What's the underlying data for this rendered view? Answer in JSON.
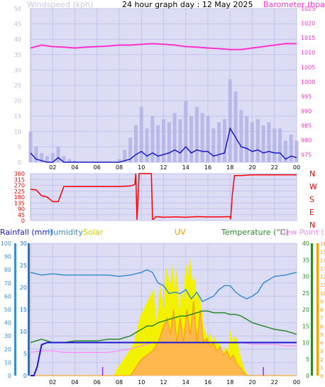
{
  "chart_data": [
    {
      "type": "line",
      "title": "24 hour graph day : 12 May 2025",
      "left_axis": {
        "label": "Windspeed (kph)",
        "range": [
          0,
          50
        ],
        "ticks": [
          "0",
          "5",
          "10",
          "15",
          "20",
          "25",
          "30",
          "35",
          "40",
          "45",
          "50"
        ],
        "color": "#c8c8e6"
      },
      "right_axis": {
        "label": "Barometer (hpa)",
        "range": [
          972.5,
          1025
        ],
        "ticks": [
          "975",
          "980",
          "985",
          "990",
          "995",
          "1000",
          "1005",
          "1010",
          "1015",
          "1020",
          "1025"
        ],
        "color": "#ff33cc"
      },
      "x_ticks": [
        "02",
        "04",
        "06",
        "08",
        "10",
        "12",
        "14",
        "16",
        "18",
        "20",
        "22",
        "00"
      ],
      "series": [
        {
          "name": "Barometer (hpa)",
          "axis": "right",
          "color": "#ff33cc",
          "x": [
            0,
            1,
            2,
            3,
            4,
            5,
            6,
            7,
            8,
            9,
            10,
            11,
            12,
            13,
            14,
            15,
            16,
            17,
            18,
            19,
            20,
            21,
            22,
            23,
            24
          ],
          "values": [
            1011.5,
            1012.5,
            1012.0,
            1011.8,
            1011.5,
            1011.8,
            1012.0,
            1012.2,
            1012.5,
            1012.5,
            1012.8,
            1013.0,
            1012.8,
            1012.5,
            1012.0,
            1011.8,
            1011.5,
            1011.3,
            1011.0,
            1011.0,
            1011.5,
            1012.0,
            1012.5,
            1013.0,
            1013.0
          ]
        },
        {
          "name": "Windspeed (kph)",
          "axis": "left",
          "color": "#1a1acc",
          "x": [
            0,
            0.5,
            1,
            1.5,
            2,
            2.5,
            3,
            3.5,
            4,
            5,
            6,
            7,
            8,
            8.5,
            9,
            9.5,
            10,
            10.5,
            11,
            11.5,
            12,
            12.5,
            13,
            13.5,
            14,
            14.5,
            15,
            15.5,
            16,
            16.5,
            17,
            17.5,
            18,
            18.5,
            19,
            19.5,
            20,
            20.5,
            21,
            21.5,
            22,
            22.5,
            23,
            23.5,
            24
          ],
          "values": [
            3,
            1,
            0.5,
            0,
            0,
            1.5,
            0,
            0,
            0,
            0,
            0,
            0,
            0,
            0.5,
            1,
            2.5,
            3.5,
            2,
            3,
            2,
            2.5,
            3,
            4,
            3,
            5,
            3,
            4,
            3.5,
            3.5,
            2,
            2.5,
            3,
            11,
            8,
            5,
            4.5,
            3.5,
            4,
            3,
            3.5,
            3,
            3,
            1,
            2,
            1.5
          ]
        },
        {
          "name": "Windspeed gust (kph)",
          "axis": "left",
          "color": "#b4b4e8",
          "x": [
            0,
            0.5,
            1,
            1.5,
            2,
            2.5,
            3,
            3.5,
            4,
            5,
            6,
            7,
            8,
            8.5,
            9,
            9.5,
            10,
            10.5,
            11,
            11.5,
            12,
            12.5,
            13,
            13.5,
            14,
            14.5,
            15,
            15.5,
            16,
            16.5,
            17,
            17.5,
            18,
            18.5,
            19,
            19.5,
            20,
            20.5,
            21,
            21.5,
            22,
            22.5,
            23,
            23.5,
            24
          ],
          "values": [
            10,
            5,
            3,
            2,
            3,
            5,
            2,
            1,
            0.5,
            0,
            0,
            0,
            1,
            4,
            8,
            12,
            18,
            11,
            15,
            12,
            14,
            13,
            16,
            14,
            20,
            15,
            18,
            16,
            15,
            11,
            13,
            14,
            27,
            23,
            17,
            15,
            13,
            14,
            12,
            13,
            11,
            11,
            7,
            9,
            7
          ]
        }
      ]
    },
    {
      "type": "line",
      "title": "Wind direction",
      "left_axis": {
        "range": [
          0,
          360
        ],
        "ticks": [
          "0",
          "45",
          "90",
          "135",
          "180",
          "225",
          "270",
          "315",
          "360"
        ],
        "color": "#ff0000"
      },
      "right_labels": [
        "N",
        "W",
        "S",
        "E",
        "N"
      ],
      "x_ticks": [
        "02",
        "04",
        "06",
        "08",
        "10",
        "12",
        "14",
        "16",
        "18",
        "20",
        "22",
        "00"
      ],
      "series": [
        {
          "name": "Wind direction",
          "color": "#ff0000",
          "x": [
            0,
            0.5,
            1,
            1.5,
            2,
            2.5,
            3,
            4,
            5,
            6,
            7,
            8,
            9,
            9.4,
            9.5,
            9.6,
            9.8,
            10.5,
            10.9,
            11,
            11.1,
            11.3,
            12,
            13,
            14,
            15,
            16,
            17,
            18,
            18.05,
            18.2,
            18.4,
            19,
            20,
            21,
            22,
            23,
            24
          ],
          "values": [
            240,
            235,
            190,
            180,
            145,
            145,
            260,
            260,
            260,
            260,
            260,
            260,
            265,
            275,
            360,
            5,
            360,
            360,
            362,
            10,
            10,
            30,
            25,
            28,
            25,
            30,
            28,
            28,
            30,
            10,
            200,
            345,
            345,
            350,
            350,
            350,
            350,
            350
          ]
        }
      ]
    },
    {
      "type": "line",
      "title": "",
      "legend": [
        "Rainfall (mm)",
        "Humidity",
        "Solar",
        "UV",
        "Temperature (°C)",
        "Dew Point (°C)"
      ],
      "left_axis": {
        "label": "Rainfall (mm)",
        "range": [
          0,
          30
        ],
        "ticks": [
          "0",
          "5",
          "10",
          "15",
          "20",
          "25",
          "30"
        ],
        "color": "#1a77cc"
      },
      "humidity_axis": {
        "label": "Humidity",
        "range": [
          0,
          100
        ],
        "ticks": [
          "0",
          "10",
          "20",
          "30",
          "40",
          "50",
          "60",
          "70",
          "80",
          "90",
          "100"
        ],
        "color": "#3a8fd0"
      },
      "temperature_axis": {
        "label": "Temperature (°C)",
        "range": [
          0,
          40
        ],
        "ticks": [
          "0",
          "5",
          "10",
          "15",
          "20",
          "25",
          "30",
          "35",
          "40"
        ],
        "color": "#ff9900"
      },
      "uv_axis": {
        "label": "UV",
        "range": [
          0,
          16
        ],
        "ticks": [
          "0",
          "1",
          "2",
          "3",
          "4",
          "5",
          "6",
          "7",
          "8",
          "9",
          "10",
          "11",
          "12",
          "13",
          "14",
          "15",
          "16"
        ],
        "color": "#ff9900"
      },
      "x_ticks": [
        "02",
        "04",
        "06",
        "08",
        "10",
        "12",
        "14",
        "16",
        "18",
        "20",
        "22",
        "00"
      ],
      "series": [
        {
          "name": "Solar",
          "axis": "temperature",
          "color": "#f2f200",
          "x": [
            0,
            7.5,
            7.8,
            8.2,
            8.6,
            9,
            9.3,
            9.6,
            9.9,
            10.2,
            10.5,
            10.8,
            11.1,
            11.4,
            11.7,
            12,
            12.2,
            12.4,
            12.6,
            12.8,
            13,
            13.2,
            13.4,
            13.6,
            13.8,
            14,
            14.2,
            14.4,
            14.6,
            14.8,
            15,
            15.2,
            15.4,
            15.6,
            15.8,
            16,
            16.2,
            16.4,
            16.6,
            16.8,
            17,
            17.2,
            17.4,
            17.6,
            17.8,
            18,
            18.2,
            18.4,
            18.6,
            18.8,
            19,
            19.3,
            19.6,
            24
          ],
          "values": [
            0,
            0,
            2,
            4,
            6,
            8,
            10,
            14,
            18,
            20,
            22,
            24,
            26,
            16,
            28,
            20,
            33,
            30,
            27,
            34,
            26,
            33,
            20,
            26,
            23,
            34,
            30,
            36,
            28,
            30,
            24,
            25,
            21,
            15,
            13,
            11,
            13,
            10,
            12,
            9,
            11,
            8,
            7,
            9,
            6,
            14,
            10,
            12,
            11,
            8,
            5,
            2,
            0,
            0
          ]
        },
        {
          "name": "UV",
          "axis": "uv",
          "color": "#ff9900",
          "x": [
            0,
            9,
            9.5,
            10,
            10.5,
            11,
            11.5,
            12,
            12.3,
            12.6,
            12.9,
            13.2,
            13.5,
            13.8,
            14.1,
            14.4,
            14.7,
            15,
            15.3,
            15.6,
            15.9,
            16.2,
            16.5,
            16.8,
            17.1,
            17.4,
            17.7,
            18,
            18.3,
            18.6,
            18.9,
            19.2,
            19.5,
            24
          ],
          "values": [
            0,
            0,
            1,
            2,
            2.5,
            3,
            4,
            6,
            7,
            5,
            8,
            4,
            7,
            4,
            8,
            5,
            9,
            4,
            8,
            4,
            4.5,
            3.5,
            4,
            3,
            3.5,
            2.5,
            3,
            2,
            2.5,
            1.5,
            1,
            0.5,
            0,
            0
          ]
        },
        {
          "name": "Humidity",
          "axis": "humidity",
          "color": "#3a8fd0",
          "x": [
            0,
            1,
            2,
            3,
            4,
            5,
            6,
            7,
            8,
            9,
            9.5,
            10,
            10.5,
            11,
            11.5,
            12,
            12.5,
            13,
            13.5,
            14,
            14.5,
            15,
            15.5,
            16,
            16.5,
            17,
            17.5,
            18,
            18.5,
            19,
            19.5,
            20,
            20.5,
            21,
            22,
            23,
            24
          ],
          "values": [
            78,
            76,
            77,
            76,
            76,
            76,
            76,
            76,
            75,
            76,
            77,
            78,
            80,
            78,
            70,
            68,
            62,
            63,
            62,
            65,
            58,
            63,
            56,
            58,
            60,
            65,
            68,
            68,
            63,
            60,
            58,
            60,
            63,
            70,
            75,
            76,
            78
          ]
        },
        {
          "name": "Temperature (°C)",
          "axis": "temperature",
          "color": "#2a8a2a",
          "x": [
            0,
            1,
            2,
            3,
            4,
            5,
            6,
            7,
            8,
            9,
            10,
            10.5,
            11,
            11.5,
            12,
            12.5,
            13,
            13.5,
            14,
            14.5,
            15,
            15.5,
            16,
            16.5,
            17,
            17.5,
            18,
            18.5,
            19,
            19.5,
            20,
            21,
            22,
            23,
            24
          ],
          "values": [
            10,
            11,
            10,
            10,
            10.5,
            10.5,
            10.5,
            11,
            11,
            12,
            14,
            15,
            15,
            16,
            16.5,
            17,
            17.5,
            18,
            18,
            18.5,
            19,
            19.5,
            19.5,
            19,
            19,
            19,
            18.5,
            18.5,
            18,
            17,
            16,
            15,
            14,
            13.5,
            12.5
          ]
        },
        {
          "name": "Dew Point (°C)",
          "axis": "temperature",
          "color": "#ff88ff",
          "x": [
            0,
            1,
            2,
            3,
            4,
            5,
            6,
            7,
            8,
            9,
            10,
            11,
            12,
            13,
            14,
            15,
            16,
            17,
            18,
            19,
            20,
            21,
            22,
            23,
            24
          ],
          "values": [
            7,
            7.5,
            7.5,
            7,
            7,
            7,
            7,
            7,
            7.5,
            8,
            9,
            10,
            10,
            10,
            10,
            10,
            10,
            10,
            10,
            10,
            9.5,
            9.5,
            9.5,
            9,
            9
          ]
        },
        {
          "name": "Rainfall (mm)",
          "axis": "rain",
          "color": "#1a1acc",
          "x": [
            0,
            0.3,
            0.6,
            1,
            1.5,
            24
          ],
          "values": [
            0,
            0,
            2,
            7,
            7.5,
            7.5
          ]
        }
      ]
    }
  ]
}
